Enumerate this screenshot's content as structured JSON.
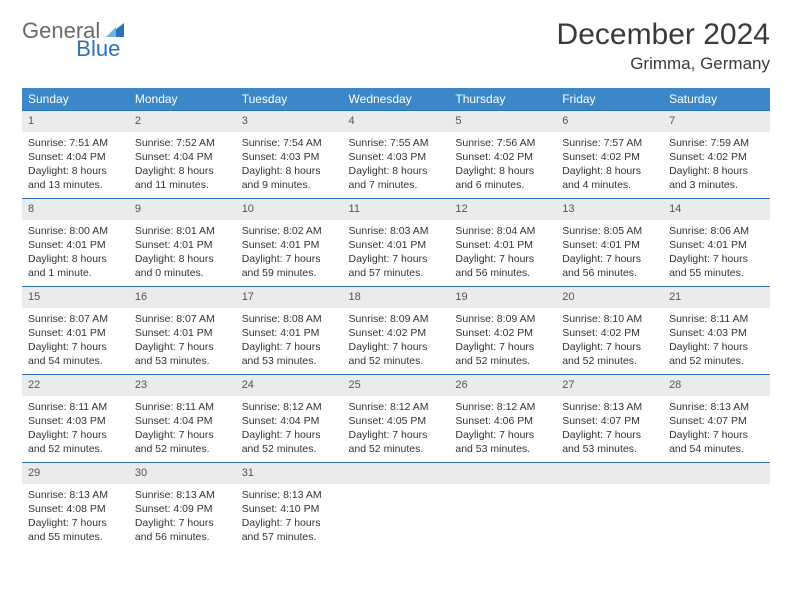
{
  "brand": {
    "part1": "General",
    "part2": "Blue",
    "color1": "#6a6a6a",
    "color2": "#2a73b8"
  },
  "title": "December 2024",
  "location": "Grimma, Germany",
  "colors": {
    "header_bg": "#3b87c8",
    "header_text": "#ffffff",
    "cell_border": "#2a73b8",
    "daynum_bg": "#e9eceb",
    "page_bg": "#ffffff"
  },
  "typography": {
    "title_fontsize": 30,
    "location_fontsize": 17,
    "dayhead_fontsize": 12,
    "cell_fontsize": 10.5
  },
  "layout": {
    "cols": 7,
    "rows": 5,
    "start_weekday": "Sunday"
  },
  "day_headers": [
    "Sunday",
    "Monday",
    "Tuesday",
    "Wednesday",
    "Thursday",
    "Friday",
    "Saturday"
  ],
  "days": [
    {
      "n": 1,
      "sunrise": "7:51 AM",
      "sunset": "4:04 PM",
      "daylight": "8 hours and 13 minutes."
    },
    {
      "n": 2,
      "sunrise": "7:52 AM",
      "sunset": "4:04 PM",
      "daylight": "8 hours and 11 minutes."
    },
    {
      "n": 3,
      "sunrise": "7:54 AM",
      "sunset": "4:03 PM",
      "daylight": "8 hours and 9 minutes."
    },
    {
      "n": 4,
      "sunrise": "7:55 AM",
      "sunset": "4:03 PM",
      "daylight": "8 hours and 7 minutes."
    },
    {
      "n": 5,
      "sunrise": "7:56 AM",
      "sunset": "4:02 PM",
      "daylight": "8 hours and 6 minutes."
    },
    {
      "n": 6,
      "sunrise": "7:57 AM",
      "sunset": "4:02 PM",
      "daylight": "8 hours and 4 minutes."
    },
    {
      "n": 7,
      "sunrise": "7:59 AM",
      "sunset": "4:02 PM",
      "daylight": "8 hours and 3 minutes."
    },
    {
      "n": 8,
      "sunrise": "8:00 AM",
      "sunset": "4:01 PM",
      "daylight": "8 hours and 1 minute."
    },
    {
      "n": 9,
      "sunrise": "8:01 AM",
      "sunset": "4:01 PM",
      "daylight": "8 hours and 0 minutes."
    },
    {
      "n": 10,
      "sunrise": "8:02 AM",
      "sunset": "4:01 PM",
      "daylight": "7 hours and 59 minutes."
    },
    {
      "n": 11,
      "sunrise": "8:03 AM",
      "sunset": "4:01 PM",
      "daylight": "7 hours and 57 minutes."
    },
    {
      "n": 12,
      "sunrise": "8:04 AM",
      "sunset": "4:01 PM",
      "daylight": "7 hours and 56 minutes."
    },
    {
      "n": 13,
      "sunrise": "8:05 AM",
      "sunset": "4:01 PM",
      "daylight": "7 hours and 56 minutes."
    },
    {
      "n": 14,
      "sunrise": "8:06 AM",
      "sunset": "4:01 PM",
      "daylight": "7 hours and 55 minutes."
    },
    {
      "n": 15,
      "sunrise": "8:07 AM",
      "sunset": "4:01 PM",
      "daylight": "7 hours and 54 minutes."
    },
    {
      "n": 16,
      "sunrise": "8:07 AM",
      "sunset": "4:01 PM",
      "daylight": "7 hours and 53 minutes."
    },
    {
      "n": 17,
      "sunrise": "8:08 AM",
      "sunset": "4:01 PM",
      "daylight": "7 hours and 53 minutes."
    },
    {
      "n": 18,
      "sunrise": "8:09 AM",
      "sunset": "4:02 PM",
      "daylight": "7 hours and 52 minutes."
    },
    {
      "n": 19,
      "sunrise": "8:09 AM",
      "sunset": "4:02 PM",
      "daylight": "7 hours and 52 minutes."
    },
    {
      "n": 20,
      "sunrise": "8:10 AM",
      "sunset": "4:02 PM",
      "daylight": "7 hours and 52 minutes."
    },
    {
      "n": 21,
      "sunrise": "8:11 AM",
      "sunset": "4:03 PM",
      "daylight": "7 hours and 52 minutes."
    },
    {
      "n": 22,
      "sunrise": "8:11 AM",
      "sunset": "4:03 PM",
      "daylight": "7 hours and 52 minutes."
    },
    {
      "n": 23,
      "sunrise": "8:11 AM",
      "sunset": "4:04 PM",
      "daylight": "7 hours and 52 minutes."
    },
    {
      "n": 24,
      "sunrise": "8:12 AM",
      "sunset": "4:04 PM",
      "daylight": "7 hours and 52 minutes."
    },
    {
      "n": 25,
      "sunrise": "8:12 AM",
      "sunset": "4:05 PM",
      "daylight": "7 hours and 52 minutes."
    },
    {
      "n": 26,
      "sunrise": "8:12 AM",
      "sunset": "4:06 PM",
      "daylight": "7 hours and 53 minutes."
    },
    {
      "n": 27,
      "sunrise": "8:13 AM",
      "sunset": "4:07 PM",
      "daylight": "7 hours and 53 minutes."
    },
    {
      "n": 28,
      "sunrise": "8:13 AM",
      "sunset": "4:07 PM",
      "daylight": "7 hours and 54 minutes."
    },
    {
      "n": 29,
      "sunrise": "8:13 AM",
      "sunset": "4:08 PM",
      "daylight": "7 hours and 55 minutes."
    },
    {
      "n": 30,
      "sunrise": "8:13 AM",
      "sunset": "4:09 PM",
      "daylight": "7 hours and 56 minutes."
    },
    {
      "n": 31,
      "sunrise": "8:13 AM",
      "sunset": "4:10 PM",
      "daylight": "7 hours and 57 minutes."
    }
  ],
  "labels": {
    "sunrise": "Sunrise:",
    "sunset": "Sunset:",
    "daylight": "Daylight:"
  }
}
